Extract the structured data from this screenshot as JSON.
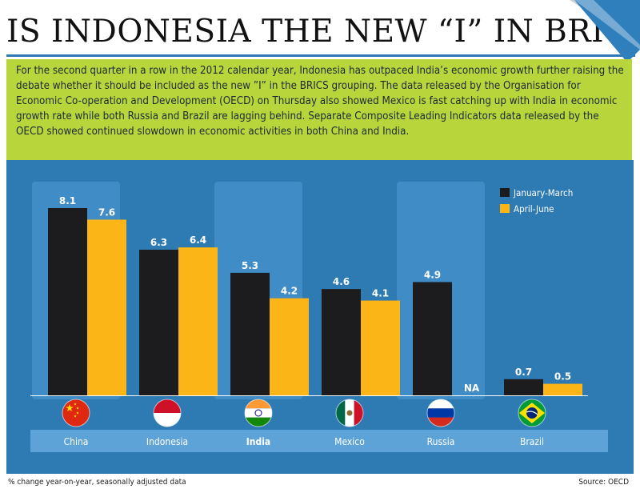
{
  "header": {
    "title": "IS INDONESIA THE NEW “I” IN BRICS?",
    "lead": "For the second quarter in a row in the 2012 calendar year, Indonesia has outpaced India’s economic growth further raising the debate whether it should be included as the new ”I” in the BRICS grouping. The data released by the Organisation for Economic Co-operation and Development (OECD) on Thursday also showed Mexico is fast catching up with India in economic growth rate while both Russia and Brazil are lagging behind. Separate Composite Leading Indicators data released by the OECD showed continued slowdown in economic activities in both China and India."
  },
  "footer": {
    "note": "% change year-on-year, seasonally adjusted data",
    "source": "Source: OECD"
  },
  "colors": {
    "title_rule": "#2d7ab5",
    "lead_background": "#b8d63c",
    "panel_background": "#2e7ab3",
    "highlight_band": "#3f8cc7",
    "label_strip": "#5ea3d7",
    "series_1": "#1c1c1e",
    "series_2": "#fbb516"
  },
  "chart_data": {
    "type": "bar",
    "categories": [
      "China",
      "Indonesia",
      "India",
      "Mexico",
      "Russia",
      "Brazil"
    ],
    "highlighted_categories": [
      "China",
      "India",
      "Russia"
    ],
    "emphasized_category": "India",
    "flag_icons": [
      "china-flag-icon",
      "indonesia-flag-icon",
      "india-flag-icon",
      "mexico-flag-icon",
      "russia-flag-icon",
      "brazil-flag-icon"
    ],
    "series": [
      {
        "name": "January-March",
        "values": [
          8.1,
          6.3,
          5.3,
          4.6,
          4.9,
          0.7
        ],
        "labels": [
          "8.1",
          "6.3",
          "5.3",
          "4.6",
          "4.9",
          "0.7"
        ]
      },
      {
        "name": "April-June",
        "values": [
          7.6,
          6.4,
          4.2,
          4.1,
          null,
          0.5
        ],
        "labels": [
          "7.6",
          "6.4",
          "4.2",
          "4.1",
          "NA",
          "0.5"
        ]
      }
    ],
    "ylim": [
      0,
      8.1
    ],
    "grid": false,
    "legend_position": "top-right"
  }
}
